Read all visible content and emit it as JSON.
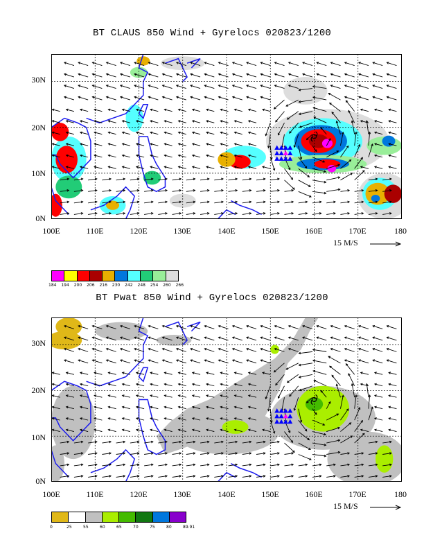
{
  "panel1": {
    "title": "BT CLAUS 850 Wind + Gyrelocs 020823/1200",
    "colorbar": {
      "colors": [
        "#ff00ff",
        "#ffff00",
        "#ff0000",
        "#aa0000",
        "#e8b000",
        "#0077dd",
        "#55ffff",
        "#22cc77",
        "#99ee99",
        "#dddddd"
      ],
      "labels": [
        "184",
        "194",
        "200",
        "206",
        "216",
        "230",
        "242",
        "248",
        "254",
        "260",
        "266"
      ]
    }
  },
  "panel2": {
    "title": "BT Pwat 850 Wind + Gyrelocs 020823/1200",
    "colorbar": {
      "colors": [
        "#e0b818",
        "#ffffff",
        "#c0c0c0",
        "#aaee00",
        "#44bb00",
        "#117711",
        "#0077dd",
        "#8800cc"
      ],
      "labels": [
        "0",
        "25",
        "55",
        "60",
        "65",
        "70",
        "75",
        "80",
        "89.91"
      ]
    }
  },
  "axes": {
    "x_ticks": [
      "100E",
      "110E",
      "120E",
      "130E",
      "140E",
      "150E",
      "160E",
      "170E",
      "180"
    ],
    "y_ticks": [
      "0N",
      "10N",
      "20N",
      "30N"
    ],
    "lon_range": [
      100,
      180
    ],
    "lat_range": [
      0,
      36
    ]
  },
  "vector_scale": "15 M/S",
  "gyrelocs": {
    "blue_triangles": [
      [
        151.5,
        15.5
      ],
      [
        152.5,
        15.5
      ],
      [
        153.5,
        15.5
      ],
      [
        154.5,
        15.5
      ],
      [
        151.5,
        14.3
      ],
      [
        152.5,
        14.3
      ],
      [
        154.5,
        14.3
      ],
      [
        151.5,
        13.1
      ],
      [
        152.5,
        13.1
      ],
      [
        153.5,
        13.1
      ],
      [
        154.5,
        13.1
      ]
    ],
    "magenta_triangle": [
      153.5,
      14.3
    ]
  }
}
